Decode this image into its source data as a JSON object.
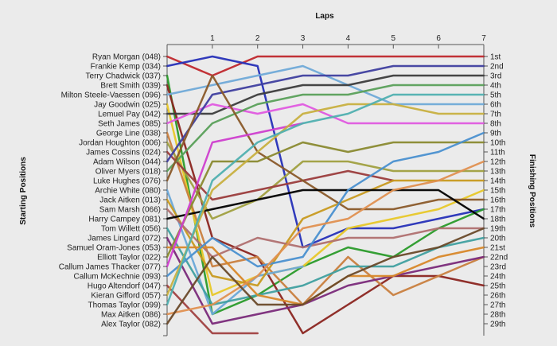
{
  "chart_data": {
    "type": "line",
    "title": "",
    "xlabel": "Laps",
    "ylabel_left": "Starting Positions",
    "ylabel_right": "Finishing Positions",
    "x": [
      0,
      1,
      2,
      3,
      4,
      5,
      6,
      7
    ],
    "x_tick_labels": [
      "1",
      "2",
      "3",
      "4",
      "5",
      "6",
      "7"
    ],
    "ylim": [
      1,
      31
    ],
    "y_inverted": true,
    "grid": false,
    "left_labels": [
      "Ryan Morgan (048)",
      "Frankie Kemp (034)",
      "Terry Chadwick (037)",
      "Brett Smith (039)",
      "Milton Steele-Vaessen (096)",
      "Jay Goodwin (025)",
      "Lemuel Pay (042)",
      "Seth James (085)",
      "George Line (038)",
      "Jordan Houghton (006)",
      "James Cossins (024)",
      "Adam Wilson (044)",
      "Oliver Myers (018)",
      "Luke Hughes (076)",
      "Archie White (080)",
      "Jack Aitken (013)",
      "Sam Marsh (066)",
      "Harry Campey (081)",
      "Tom Willett (056)",
      "James Lingard (072)",
      "Samuel Oram-Jones (053)",
      "Elliott Taylor (022)",
      "Callum James Thacker (077)",
      "Callum McKechnie (093)",
      "Hugo Altendorf (047)",
      "Kieran Gifford (057)",
      "Thomas Taylor (099)",
      "Max Aitken (086)",
      "Alex Taylor (082)"
    ],
    "right_labels": [
      "1st",
      "2nd",
      "3rd",
      "4th",
      "5th",
      "6th",
      "7th",
      "8th",
      "9th",
      "10th",
      "11th",
      "12th",
      "13th",
      "14th",
      "15th",
      "16th",
      "17th",
      "18th",
      "19th",
      "20th",
      "21st",
      "22nd",
      "23rd",
      "24th",
      "25th",
      "26th",
      "27th",
      "28th",
      "29th"
    ],
    "series": [
      {
        "color": "#c0282d",
        "values": [
          1,
          3,
          1,
          1,
          1,
          1,
          1,
          1
        ]
      },
      {
        "color": "#2630b8",
        "values": [
          2,
          1,
          2,
          21,
          19,
          19,
          18,
          17
        ]
      },
      {
        "color": "#2a9b2a",
        "values": [
          3,
          28,
          26,
          23,
          21,
          22,
          19,
          17
        ]
      },
      {
        "color": "#8b2520",
        "values": [
          4,
          20,
          22,
          30,
          27,
          24,
          24,
          25
        ]
      },
      {
        "color": "#70aad8",
        "values": [
          5,
          4,
          3,
          2,
          4,
          6,
          6,
          6
        ]
      },
      {
        "color": "#e8c829",
        "values": [
          6,
          26,
          24,
          23,
          19,
          18,
          17,
          15
        ]
      },
      {
        "color": "#3c3c3c",
        "values": [
          7,
          7,
          5,
          4,
          4,
          3,
          3,
          3
        ]
      },
      {
        "color": "#e05ae0",
        "values": [
          8,
          6,
          7,
          6,
          8,
          8,
          8,
          8
        ]
      },
      {
        "color": "#c97f3f",
        "values": [
          9,
          23,
          22,
          27,
          22,
          26,
          24,
          22
        ]
      },
      {
        "color": "#a0a040",
        "values": [
          10,
          18,
          16,
          12,
          12,
          13,
          13,
          13
        ]
      },
      {
        "color": "#9b3c3c",
        "values": [
          11,
          16,
          15,
          14,
          13,
          14,
          null,
          null
        ]
      },
      {
        "color": "#3f3f9f",
        "values": [
          12,
          5,
          4,
          3,
          3,
          2,
          2,
          2
        ]
      },
      {
        "color": "#5aa05a",
        "values": [
          13,
          8,
          6,
          5,
          5,
          4,
          4,
          4
        ]
      },
      {
        "color": "#8a5a2a",
        "values": [
          14,
          3,
          11,
          14,
          17,
          17,
          16,
          16
        ]
      },
      {
        "color": "#6aa8d8",
        "values": [
          15,
          28,
          24,
          23,
          null,
          null,
          null,
          null
        ]
      },
      {
        "color": "#c89a20",
        "values": [
          16,
          24,
          25,
          18,
          16,
          14,
          14,
          14
        ]
      },
      {
        "color": "#b07070",
        "values": [
          17,
          22,
          20,
          21,
          20,
          20,
          19,
          19
        ]
      },
      {
        "color": "#000000",
        "values": [
          18,
          17,
          16,
          15,
          15,
          15,
          15,
          18
        ]
      },
      {
        "color": "#40a0a0",
        "values": [
          19,
          27,
          26,
          25,
          23,
          23,
          21,
          20
        ]
      },
      {
        "color": "#7a2a7a",
        "values": [
          20,
          29,
          28,
          27,
          25,
          24,
          23,
          22
        ]
      },
      {
        "color": "#d8882a",
        "values": [
          21,
          21,
          26,
          27,
          24,
          24,
          22,
          21
        ]
      },
      {
        "color": "#8a8a30",
        "values": [
          22,
          12,
          12,
          10,
          11,
          10,
          10,
          10
        ]
      },
      {
        "color": "#cf3fcf",
        "values": [
          23,
          10,
          9,
          8,
          null,
          null,
          null,
          null
        ]
      },
      {
        "color": "#4a90d0",
        "values": [
          24,
          20,
          23,
          22,
          15,
          12,
          11,
          9
        ]
      },
      {
        "color": "#a04040",
        "values": [
          25,
          30,
          30,
          null,
          null,
          null,
          null,
          null
        ]
      },
      {
        "color": "#c8b040",
        "values": [
          26,
          15,
          11,
          7,
          6,
          6,
          7,
          7
        ]
      },
      {
        "color": "#50b0b0",
        "values": [
          27,
          14,
          10,
          8,
          7,
          5,
          5,
          5
        ]
      },
      {
        "color": "#e09050",
        "values": [
          28,
          27,
          24,
          19,
          18,
          15,
          14,
          12
        ]
      },
      {
        "color": "#6a4a2a",
        "values": [
          29,
          22,
          27,
          27,
          24,
          22,
          21,
          19
        ]
      }
    ]
  }
}
